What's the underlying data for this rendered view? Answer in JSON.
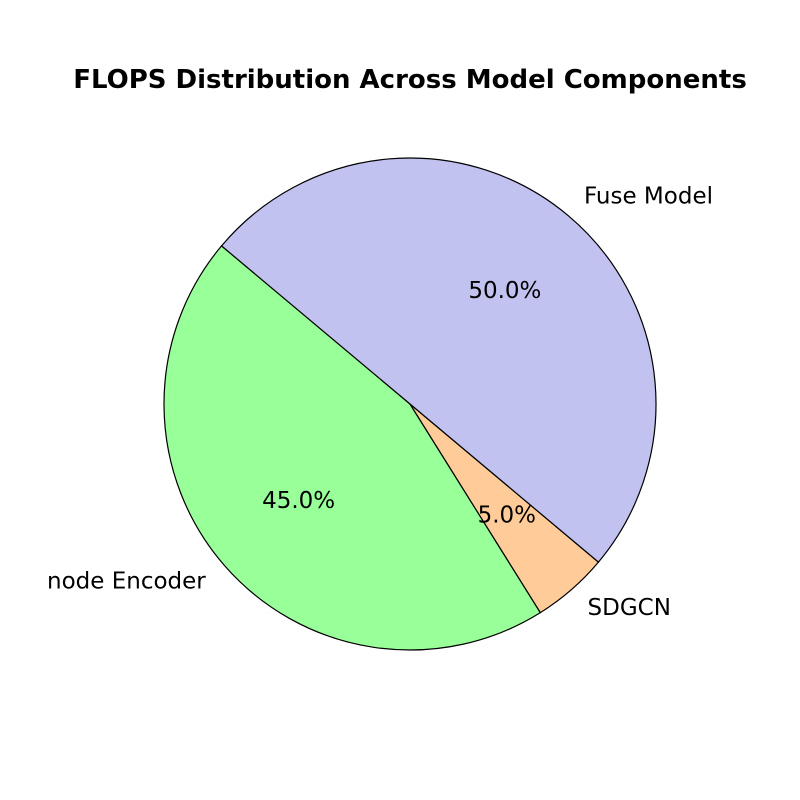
{
  "chart_data": {
    "type": "pie",
    "title": "FLOPS Distribution Across Model Components",
    "start_angle_deg": 140,
    "direction": "counterclockwise",
    "slices": [
      {
        "name": "node Encoder",
        "value": 45.0,
        "pct_label": "45.0%",
        "color": "#99ff99"
      },
      {
        "name": "SDGCN",
        "value": 5.0,
        "pct_label": "5.0%",
        "color": "#ffcc99"
      },
      {
        "name": "Fuse Model",
        "value": 50.0,
        "pct_label": "50.0%",
        "color": "#c2c2f0"
      }
    ]
  }
}
